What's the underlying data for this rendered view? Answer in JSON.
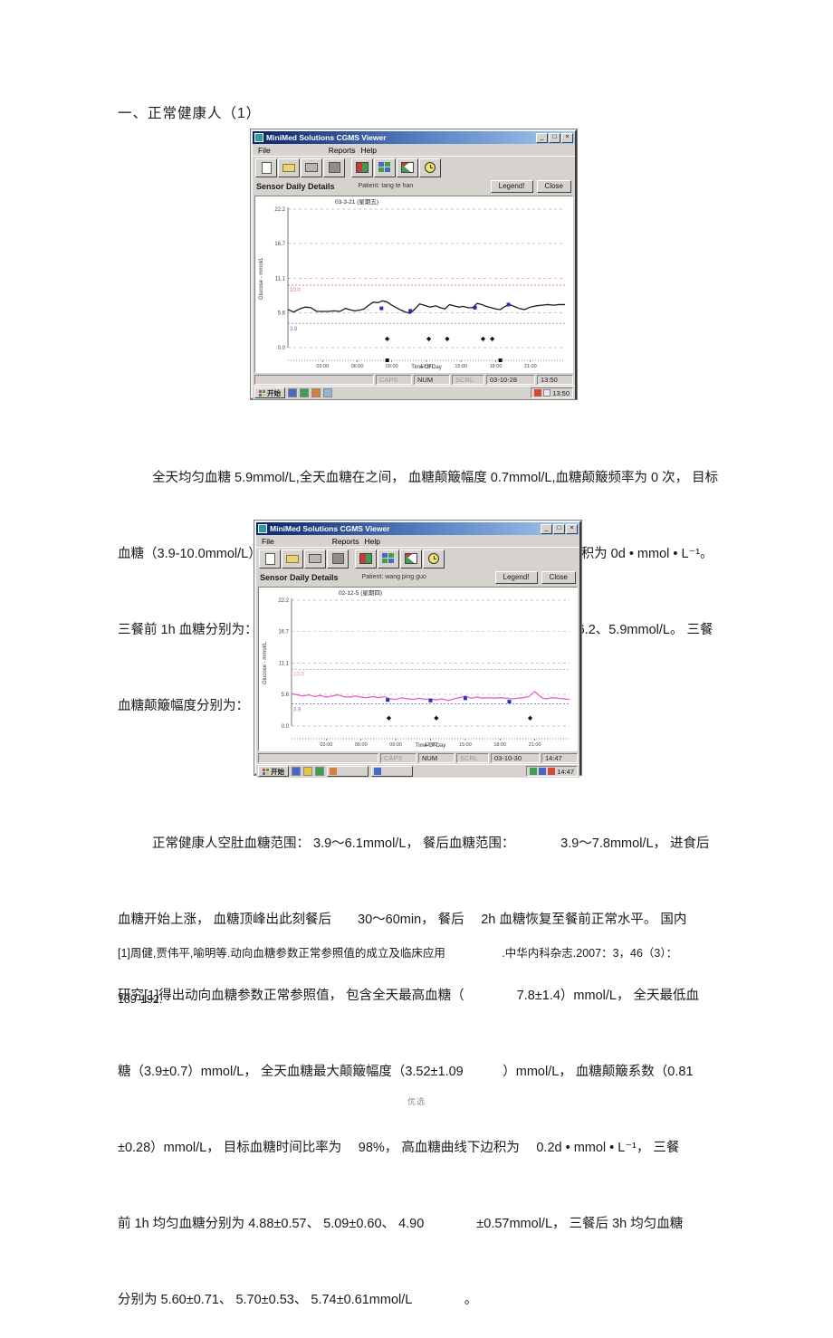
{
  "page": {
    "heading": "一、正常健康人（1）",
    "footer": "优选",
    "paragraph1_lines": [
      "全天均匀血糖 5.9mmol/L,全天血糖在之间， 血糖颠簸幅度 0.7mmol/L,血糖颠簸频率为 0 次， 目标",
      "血糖（3.9-10.0mmol/L）时间比率为 100%， 高血糖（＞10.0mmol/L）曲线下边积为 0d • mmol • L⁻¹。",
      "三餐前 1h 血糖分别为： 5.4、4.9、6.6mmol/L， 三餐后 3h 血糖分别为： 6.5、6.2、5.9mmol/L。 三餐",
      "血糖颠簸幅度分别为： 1.1、1.3、-0.7mmol/L。 正常健康人（2）"
    ],
    "paragraph2_lines": [
      "正常健康人空肚血糖范围： 3.9～6.1mmol/L， 餐后血糖范围：　　　　3.9～7.8mmol/L， 进食后",
      "血糖开始上涨， 血糖顶峰出此刻餐后　　30～60min， 餐后　 2h 血糖恢复至餐前正常水平。 国内",
      "研究[1]得出动向血糖参数正常参照值， 包含全天最高血糖（　　　　7.8±1.4）mmol/L， 全天最低血",
      "糖（3.9±0.7）mmol/L， 全天血糖最大颠簸幅度（3.52±1.09　　　）mmol/L， 血糖颠簸系数（0.81",
      "±0.28）mmol/L， 目标血糖时间比率为　 98%， 高血糖曲线下边积为　 0.2d • mmol • L⁻¹， 三餐",
      "前 1h 均匀血糖分别为 4.88±0.57、 5.09±0.60、 4.90　　　　±0.57mmol/L， 三餐后 3h 均匀血糖",
      "分别为 5.60±0.71、 5.70±0.53、 5.74±0.61mmol/L　　　　。"
    ],
    "footnote_lines": [
      "[1]周健,贾伟平,喻明等.动向血糖参数正常参照值的成立及临床应用　　　　　.中华内科杂志.2007：3，46（3）：",
      "189-192."
    ]
  },
  "window1": {
    "title": "MiniMed Solutions  CGMS Viewer",
    "menu": [
      "File",
      "Reports",
      "Help"
    ],
    "panel": {
      "title": "Sensor Daily Details",
      "patient_label": "Patient:",
      "patient_name": "tang te han",
      "legend_button": "Legend!",
      "close_button": "Close"
    },
    "status": {
      "caps": "CAPS",
      "num": "NUM",
      "scrl": "SCRL",
      "date": "03-10-28",
      "time": "13:50"
    },
    "taskbar": {
      "start": "开始",
      "tray_time": "13:50"
    }
  },
  "window2": {
    "title": "MiniMed Solutions  CGMS Viewer",
    "menu": [
      "File",
      "Reports",
      "Help"
    ],
    "panel": {
      "title": "Sensor Daily Details",
      "patient_label": "Patient:",
      "patient_name": "wang ping guo",
      "legend_button": "Legend!",
      "close_button": "Close"
    },
    "status": {
      "caps": "CAPS",
      "num": "NUM",
      "scrl": "SCRL",
      "date": "03-10-30",
      "time": "14:47"
    },
    "taskbar": {
      "start": "开始",
      "tray_time": "14:47"
    }
  },
  "chart_data": [
    {
      "type": "line",
      "title": "03-3-21 (星期五)",
      "xlabel": "Time Of Day",
      "ylabel": "Glucose - mmol/L",
      "ylim": [
        0,
        22.2
      ],
      "yticks": [
        0,
        5.6,
        11.1,
        16.7,
        22.2
      ],
      "ytick_labels": [
        "0.0",
        "5.6",
        "11.1",
        "16.7",
        "22.2"
      ],
      "xtick_hours": [
        3,
        6,
        9,
        12,
        15,
        18,
        21
      ],
      "xtick_labels": [
        "03:00",
        "06:00",
        "09:00",
        "12:00",
        "15:00",
        "18:00",
        "21:00"
      ],
      "hi_limit": 10.0,
      "hi_label": "10.0",
      "hi_color": "#d96a6a",
      "lo_limit": 3.9,
      "lo_label": "3.9",
      "lo_color": "#7777d0",
      "line_color": "#1a1a1a",
      "grid": true,
      "legend_position": "none",
      "series": [
        {
          "name": "sensor glucose",
          "x": [
            0,
            0.5,
            1,
            1.5,
            2,
            2.5,
            3,
            3.5,
            4,
            4.5,
            5,
            5.3,
            5.8,
            6.2,
            6.6,
            7,
            7.4,
            7.8,
            8.2,
            8.6,
            9,
            9.4,
            9.8,
            10.2,
            10.6,
            11,
            11.4,
            11.8,
            12.3,
            12.8,
            13.2,
            13.6,
            14,
            14.4,
            14.8,
            15.2,
            15.6,
            16,
            16.4,
            16.8,
            17.2,
            17.6,
            18,
            18.4,
            18.8,
            19.2,
            19.6,
            20,
            20.5,
            21,
            21.5,
            22,
            22.5,
            23,
            23.5,
            24
          ],
          "y": [
            6.1,
            5.7,
            6.2,
            6.5,
            6.4,
            5.8,
            5.8,
            5.8,
            5.9,
            5.8,
            6.3,
            6.1,
            5.9,
            6.0,
            6.2,
            6.8,
            7.3,
            7.2,
            7.5,
            7.3,
            6.8,
            6.4,
            6.0,
            5.7,
            5.5,
            6.2,
            7.0,
            6.8,
            6.5,
            6.7,
            6.4,
            6.2,
            6.9,
            6.7,
            6.5,
            6.6,
            6.4,
            6.4,
            7.1,
            6.9,
            6.6,
            6.4,
            6.2,
            6.1,
            6.6,
            6.9,
            6.6,
            6.3,
            6.1,
            6.5,
            6.7,
            6.8,
            6.9,
            6.8,
            6.9,
            6.9
          ]
        }
      ],
      "meter_markers": {
        "x": [
          8.1,
          10.6,
          16.2,
          19.1
        ],
        "y": [
          6.3,
          5.9,
          6.4,
          6.9
        ],
        "color": "#2233bb"
      },
      "event_markers": {
        "x": [
          8.6,
          12.2,
          13.8,
          16.9,
          17.7
        ],
        "y_level": 1.4,
        "color": "#111111"
      },
      "axis_event_x": [
        8.6,
        18.4
      ]
    },
    {
      "type": "line",
      "title": "02-12-5 (星期四)",
      "xlabel": "Time Of Day",
      "ylabel": "Glucose - mmol/L",
      "ylim": [
        0,
        22.2
      ],
      "yticks": [
        0,
        5.6,
        11.1,
        16.7,
        22.2
      ],
      "ytick_labels": [
        "0.0",
        "5.6",
        "11.1",
        "16.7",
        "22.2"
      ],
      "xtick_hours": [
        3,
        6,
        9,
        12,
        15,
        18,
        21
      ],
      "xtick_labels": [
        "03:00",
        "06:00",
        "09:00",
        "12:00",
        "15:00",
        "18:00",
        "21:00"
      ],
      "hi_limit": 10.0,
      "hi_label": "10.0",
      "hi_color": "#e08a8a",
      "lo_limit": 3.9,
      "lo_label": "3.9",
      "lo_color": "#7777d0",
      "line_color": "#e763cf",
      "grid": true,
      "legend_position": "none",
      "series": [
        {
          "name": "sensor glucose",
          "x": [
            0,
            0.5,
            1,
            1.5,
            2,
            2.5,
            3,
            3.5,
            4,
            4.5,
            5,
            5.5,
            6,
            6.5,
            7,
            7.5,
            8,
            8.5,
            9,
            9.5,
            10,
            10.5,
            11,
            11.5,
            12,
            12.5,
            13,
            13.5,
            14,
            14.5,
            15,
            15.5,
            16,
            16.5,
            17,
            17.5,
            18,
            18.5,
            19,
            19.5,
            20,
            20.5,
            21,
            21.3,
            21.7,
            22,
            22.5,
            23,
            23.5,
            24
          ],
          "y": [
            5.7,
            5.5,
            5.3,
            5.5,
            5.2,
            5.4,
            5.1,
            5.3,
            5.5,
            5.2,
            5.1,
            5.3,
            5.1,
            5.0,
            5.2,
            5.0,
            5.2,
            4.8,
            4.7,
            5.0,
            4.8,
            4.7,
            4.9,
            4.7,
            4.8,
            4.6,
            4.8,
            4.5,
            4.8,
            5.0,
            5.3,
            4.9,
            5.1,
            4.9,
            5.0,
            4.9,
            5.0,
            4.9,
            4.8,
            4.9,
            5.0,
            5.2,
            6.1,
            5.5,
            4.9,
            4.8,
            5.0,
            4.9,
            4.8,
            4.7
          ]
        }
      ],
      "meter_markers": {
        "x": [
          8.3,
          12.0,
          15.0,
          18.8
        ],
        "y": [
          4.6,
          4.5,
          4.9,
          4.3
        ],
        "color": "#2233bb"
      },
      "event_markers": {
        "x": [
          8.4,
          12.5,
          20.6
        ],
        "y_level": 1.4,
        "color": "#111111"
      },
      "axis_event_x": []
    }
  ]
}
